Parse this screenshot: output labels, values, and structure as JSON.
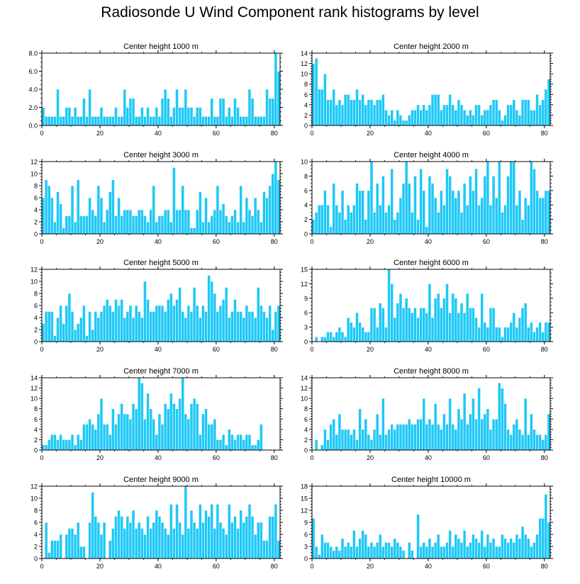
{
  "figure_title": "Radiosonde U Wind Component rank histograms by level",
  "bar_color": "#1ec8f7",
  "chart_data": [
    {
      "type": "bar",
      "title": "Center height 1000 m",
      "xlim": [
        0,
        82
      ],
      "ylim": [
        0,
        8
      ],
      "yticks": [
        0,
        2,
        4,
        6,
        8
      ],
      "ytick_labels": [
        "0.0",
        "2.0",
        "4.0",
        "6.0",
        "8.0"
      ],
      "xticks": [
        0,
        20,
        40,
        60,
        80
      ],
      "xtick_labels": [
        "0",
        "20",
        "40",
        "60",
        "80"
      ],
      "values": [
        2,
        1,
        1,
        1,
        1,
        4,
        1,
        1,
        2,
        2,
        1,
        2,
        1,
        1,
        3,
        1,
        4,
        1,
        1,
        1,
        2,
        1,
        1,
        1,
        1,
        2,
        1,
        1,
        4,
        2,
        3,
        3,
        1,
        1,
        2,
        1,
        2,
        1,
        1,
        2,
        1,
        3,
        4,
        3,
        1,
        2,
        4,
        2,
        2,
        4,
        2,
        2,
        1,
        2,
        2,
        1,
        1,
        1,
        3,
        1,
        1,
        3,
        3,
        1,
        2,
        1,
        3,
        2,
        1,
        1,
        1,
        4,
        3,
        1,
        1,
        1,
        1,
        4,
        3,
        3,
        8,
        6
      ]
    },
    {
      "type": "bar",
      "title": "Center height 2000 m",
      "xlim": [
        0,
        82
      ],
      "ylim": [
        0,
        14
      ],
      "yticks": [
        0,
        2,
        4,
        6,
        8,
        10,
        12,
        14
      ],
      "ytick_labels": [
        "0",
        "2",
        "4",
        "6",
        "8",
        "10",
        "12",
        "14"
      ],
      "xticks": [
        0,
        20,
        40,
        60,
        80
      ],
      "xtick_labels": [
        "0",
        "20",
        "40",
        "60",
        "80"
      ],
      "values": [
        12,
        13,
        7,
        7,
        10,
        5,
        5,
        7,
        4,
        5,
        4,
        6,
        6,
        5,
        5,
        7,
        5,
        6,
        4,
        5,
        5,
        4,
        5,
        5,
        6,
        3,
        2,
        3,
        1,
        3,
        2,
        1,
        1,
        2,
        3,
        3,
        4,
        3,
        4,
        3,
        4,
        6,
        6,
        6,
        3,
        4,
        4,
        6,
        4,
        3,
        5,
        4,
        3,
        2,
        3,
        2,
        4,
        4,
        2,
        3,
        3,
        4,
        5,
        5,
        3,
        1,
        2,
        4,
        4,
        5,
        3,
        2,
        5,
        5,
        5,
        3,
        3,
        6,
        4,
        5,
        7,
        9
      ]
    },
    {
      "type": "bar",
      "title": "Center height 3000 m",
      "xlim": [
        0,
        82
      ],
      "ylim": [
        0,
        12
      ],
      "yticks": [
        0,
        2,
        4,
        6,
        8,
        10,
        12
      ],
      "ytick_labels": [
        "0",
        "2",
        "4",
        "6",
        "8",
        "10",
        "12"
      ],
      "xticks": [
        0,
        20,
        40,
        60,
        80
      ],
      "xtick_labels": [
        "0",
        "20",
        "40",
        "60",
        "80"
      ],
      "values": [
        6,
        9,
        8,
        6,
        2,
        7,
        5,
        1,
        3,
        3,
        8,
        2,
        9,
        3,
        3,
        3,
        6,
        4,
        3,
        8,
        6,
        2,
        4,
        7,
        9,
        3,
        6,
        3,
        4,
        4,
        4,
        3,
        3,
        4,
        4,
        3,
        2,
        4,
        8,
        2,
        3,
        3,
        4,
        4,
        2,
        11,
        4,
        4,
        8,
        4,
        4,
        1,
        1,
        4,
        7,
        2,
        6,
        2,
        3,
        4,
        8,
        4,
        5,
        3,
        2,
        3,
        4,
        2,
        8,
        2,
        6,
        4,
        3,
        6,
        4,
        2,
        7,
        6,
        8,
        10,
        12,
        9
      ]
    },
    {
      "type": "bar",
      "title": "Center height 4000 m",
      "xlim": [
        0,
        82
      ],
      "ylim": [
        0,
        10
      ],
      "yticks": [
        0,
        2,
        4,
        6,
        8,
        10
      ],
      "ytick_labels": [
        "0",
        "2",
        "4",
        "6",
        "8",
        "10"
      ],
      "xticks": [
        0,
        20,
        40,
        60,
        80
      ],
      "xtick_labels": [
        "0",
        "20",
        "40",
        "60",
        "80"
      ],
      "values": [
        2,
        3,
        4,
        4,
        6,
        4,
        1,
        7,
        4,
        3,
        6,
        2,
        4,
        3,
        4,
        7,
        6,
        6,
        2,
        6,
        10,
        3,
        7,
        4,
        8,
        3,
        4,
        9,
        2,
        3,
        5,
        7,
        10,
        7,
        3,
        8,
        2,
        9,
        6,
        1,
        8,
        7,
        5,
        3,
        6,
        4,
        9,
        8,
        6,
        5,
        6,
        3,
        7,
        4,
        8,
        6,
        9,
        4,
        5,
        8,
        10,
        4,
        8,
        5,
        10,
        3,
        4,
        8,
        10,
        10,
        4,
        6,
        2,
        5,
        4,
        10,
        9,
        6,
        5,
        5,
        6,
        6
      ]
    },
    {
      "type": "bar",
      "title": "Center height 5000 m",
      "xlim": [
        0,
        82
      ],
      "ylim": [
        0,
        12
      ],
      "yticks": [
        0,
        2,
        4,
        6,
        8,
        10,
        12
      ],
      "ytick_labels": [
        "0",
        "2",
        "4",
        "6",
        "8",
        "10",
        "12"
      ],
      "xticks": [
        0,
        20,
        40,
        60,
        80
      ],
      "xtick_labels": [
        "0",
        "20",
        "40",
        "60",
        "80"
      ],
      "values": [
        3,
        5,
        5,
        5,
        1,
        4,
        6,
        3,
        6,
        8,
        5,
        2,
        3,
        4,
        6,
        1,
        5,
        2,
        5,
        4,
        5,
        6,
        7,
        6,
        5,
        7,
        6,
        7,
        4,
        5,
        6,
        4,
        6,
        5,
        4,
        10,
        7,
        5,
        5,
        6,
        6,
        6,
        5,
        7,
        8,
        6,
        7,
        9,
        5,
        4,
        6,
        5,
        9,
        6,
        4,
        6,
        5,
        11,
        10,
        8,
        5,
        6,
        7,
        9,
        4,
        5,
        7,
        5,
        5,
        4,
        6,
        5,
        5,
        4,
        9,
        6,
        5,
        4,
        6,
        2,
        5,
        6
      ]
    },
    {
      "type": "bar",
      "title": "Center height 6000 m",
      "xlim": [
        0,
        82
      ],
      "ylim": [
        0,
        15
      ],
      "yticks": [
        0,
        3,
        6,
        9,
        12,
        15
      ],
      "ytick_labels": [
        "0",
        "3",
        "6",
        "9",
        "12",
        "15"
      ],
      "xticks": [
        0,
        20,
        40,
        60,
        80
      ],
      "xtick_labels": [
        "0",
        "20",
        "40",
        "60",
        "80"
      ],
      "values": [
        0,
        1,
        0,
        1,
        1,
        2,
        2,
        1,
        2,
        3,
        2,
        1,
        5,
        4,
        3,
        6,
        4,
        3,
        2,
        2,
        7,
        7,
        3,
        8,
        7,
        3,
        15,
        12,
        5,
        8,
        10,
        7,
        9,
        7,
        6,
        7,
        5,
        7,
        7,
        6,
        12,
        5,
        9,
        10,
        7,
        9,
        12,
        6,
        10,
        9,
        6,
        8,
        6,
        10,
        7,
        7,
        5,
        3,
        10,
        4,
        3,
        7,
        7,
        3,
        3,
        1,
        3,
        3,
        4,
        6,
        3,
        5,
        7,
        8,
        3,
        4,
        2,
        3,
        4,
        2,
        4,
        4
      ]
    },
    {
      "type": "bar",
      "title": "Center height 7000 m",
      "xlim": [
        0,
        82
      ],
      "ylim": [
        0,
        14
      ],
      "yticks": [
        0,
        2,
        4,
        6,
        8,
        10,
        12,
        14
      ],
      "ytick_labels": [
        "0",
        "2",
        "4",
        "6",
        "8",
        "10",
        "12",
        "14"
      ],
      "xticks": [
        0,
        20,
        40,
        60,
        80
      ],
      "xtick_labels": [
        "0",
        "20",
        "40",
        "60",
        "80"
      ],
      "values": [
        1,
        1,
        2,
        3,
        3,
        2,
        3,
        2,
        2,
        2,
        3,
        1,
        3,
        2,
        5,
        5,
        6,
        5,
        4,
        7,
        10,
        5,
        5,
        3,
        8,
        5,
        7,
        9,
        7,
        7,
        6,
        9,
        8,
        14,
        13,
        6,
        11,
        8,
        6,
        3,
        7,
        5,
        9,
        8,
        11,
        9,
        8,
        10,
        14,
        7,
        6,
        9,
        10,
        9,
        3,
        7,
        8,
        5,
        5,
        6,
        2,
        2,
        3,
        1,
        4,
        3,
        2,
        3,
        3,
        2,
        3,
        3,
        1,
        1,
        2,
        5
      ]
    },
    {
      "type": "bar",
      "title": "Center height 8000 m",
      "xlim": [
        0,
        82
      ],
      "ylim": [
        0,
        14
      ],
      "yticks": [
        0,
        2,
        4,
        6,
        8,
        10,
        12,
        14
      ],
      "ytick_labels": [
        "0",
        "2",
        "4",
        "6",
        "8",
        "10",
        "12",
        "14"
      ],
      "xticks": [
        0,
        20,
        40,
        60,
        80
      ],
      "xtick_labels": [
        "0",
        "20",
        "40",
        "60",
        "80"
      ],
      "values": [
        0,
        2,
        0,
        1,
        4,
        2,
        5,
        6,
        3,
        7,
        4,
        4,
        4,
        3,
        4,
        2,
        8,
        4,
        6,
        3,
        2,
        4,
        7,
        3,
        10,
        3,
        4,
        5,
        4,
        5,
        5,
        5,
        5,
        6,
        5,
        5,
        6,
        6,
        10,
        5,
        6,
        5,
        9,
        5,
        4,
        7,
        5,
        10,
        5,
        4,
        8,
        6,
        11,
        5,
        7,
        10,
        6,
        12,
        6,
        7,
        8,
        4,
        6,
        6,
        13,
        12,
        9,
        4,
        3,
        5,
        6,
        4,
        3,
        10,
        3,
        7,
        4,
        3,
        3,
        2,
        3,
        7
      ]
    },
    {
      "type": "bar",
      "title": "Center height 9000 m",
      "xlim": [
        0,
        82
      ],
      "ylim": [
        0,
        12
      ],
      "yticks": [
        0,
        2,
        4,
        6,
        8,
        10,
        12
      ],
      "ytick_labels": [
        "0",
        "2",
        "4",
        "6",
        "8",
        "10",
        "12"
      ],
      "xticks": [
        0,
        20,
        40,
        60,
        80
      ],
      "xtick_labels": [
        "0",
        "20",
        "40",
        "60",
        "80"
      ],
      "values": [
        0,
        6,
        1,
        3,
        3,
        3,
        4,
        0,
        4,
        5,
        5,
        4,
        6,
        2,
        2,
        0,
        6,
        11,
        7,
        6,
        4,
        6,
        0,
        3,
        5,
        7,
        8,
        7,
        5,
        7,
        6,
        8,
        5,
        6,
        5,
        4,
        7,
        5,
        6,
        8,
        7,
        6,
        5,
        4,
        9,
        5,
        9,
        6,
        4,
        12,
        5,
        8,
        6,
        5,
        9,
        6,
        8,
        7,
        9,
        5,
        9,
        6,
        5,
        4,
        9,
        6,
        7,
        5,
        8,
        6,
        7,
        9,
        7,
        4,
        6,
        6,
        3,
        3,
        7,
        7,
        9,
        3
      ]
    },
    {
      "type": "bar",
      "title": "Center height 10000 m",
      "xlim": [
        0,
        82
      ],
      "ylim": [
        0,
        18
      ],
      "yticks": [
        0,
        3,
        6,
        9,
        12,
        15,
        18
      ],
      "ytick_labels": [
        "0",
        "3",
        "6",
        "9",
        "12",
        "15",
        "18"
      ],
      "xticks": [
        0,
        20,
        40,
        60,
        80
      ],
      "xtick_labels": [
        "0",
        "20",
        "40",
        "60",
        "80"
      ],
      "values": [
        10,
        3,
        1,
        6,
        4,
        4,
        3,
        2,
        3,
        2,
        5,
        3,
        4,
        3,
        7,
        3,
        5,
        7,
        6,
        3,
        4,
        3,
        4,
        6,
        3,
        4,
        4,
        3,
        5,
        4,
        3,
        2,
        0,
        4,
        2,
        0,
        11,
        3,
        4,
        3,
        5,
        3,
        4,
        6,
        3,
        3,
        4,
        7,
        3,
        6,
        5,
        4,
        7,
        3,
        4,
        6,
        5,
        4,
        7,
        3,
        6,
        4,
        5,
        3,
        3,
        6,
        5,
        4,
        5,
        4,
        6,
        5,
        8,
        6,
        5,
        3,
        4,
        6,
        10,
        10,
        16,
        9
      ]
    }
  ]
}
